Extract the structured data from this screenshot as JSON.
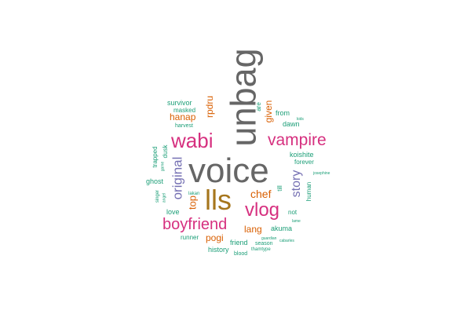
{
  "colors": {
    "gray": "#666666",
    "magenta": "#d6307f",
    "gold": "#a6761d",
    "purple": "#7570b3",
    "orange": "#d95f02",
    "teal": "#1b9e77",
    "green": "#66a61e"
  },
  "words": [
    {
      "text": "voice",
      "color": "gray"
    },
    {
      "text": "unbag",
      "color": "gray"
    },
    {
      "text": "lls",
      "color": "gold"
    },
    {
      "text": "wabi",
      "color": "magenta"
    },
    {
      "text": "vampire",
      "color": "magenta"
    },
    {
      "text": "vlog",
      "color": "magenta"
    },
    {
      "text": "boyfriend",
      "color": "magenta"
    },
    {
      "text": "original",
      "color": "purple"
    },
    {
      "text": "story",
      "color": "purple"
    },
    {
      "text": "chef",
      "color": "orange"
    },
    {
      "text": "top",
      "color": "orange"
    },
    {
      "text": "hanap",
      "color": "orange"
    },
    {
      "text": "rpdru",
      "color": "orange"
    },
    {
      "text": "given",
      "color": "orange"
    },
    {
      "text": "pogi",
      "color": "orange"
    },
    {
      "text": "lang",
      "color": "orange"
    },
    {
      "text": "survivor",
      "color": "teal"
    },
    {
      "text": "masked",
      "color": "teal"
    },
    {
      "text": "harvest",
      "color": "teal"
    },
    {
      "text": "are",
      "color": "teal"
    },
    {
      "text": "from",
      "color": "teal"
    },
    {
      "text": "dawn",
      "color": "teal"
    },
    {
      "text": "kids",
      "color": "teal"
    },
    {
      "text": "koishite",
      "color": "teal"
    },
    {
      "text": "forever",
      "color": "teal"
    },
    {
      "text": "till",
      "color": "teal"
    },
    {
      "text": "human",
      "color": "teal"
    },
    {
      "text": "josephine",
      "color": "teal"
    },
    {
      "text": "trapped",
      "color": "teal"
    },
    {
      "text": "dusk",
      "color": "teal"
    },
    {
      "text": "game",
      "color": "teal"
    },
    {
      "text": "ghost",
      "color": "teal"
    },
    {
      "text": "singer",
      "color": "teal"
    },
    {
      "text": "angel",
      "color": "teal"
    },
    {
      "text": "lakan",
      "color": "teal"
    },
    {
      "text": "love",
      "color": "teal"
    },
    {
      "text": "akuma",
      "color": "teal"
    },
    {
      "text": "not",
      "color": "teal"
    },
    {
      "text": "lame",
      "color": "teal"
    },
    {
      "text": "runner",
      "color": "teal"
    },
    {
      "text": "friend",
      "color": "teal"
    },
    {
      "text": "guardian",
      "color": "teal"
    },
    {
      "text": "season",
      "color": "teal"
    },
    {
      "text": "cabarles",
      "color": "teal"
    },
    {
      "text": "history",
      "color": "teal"
    },
    {
      "text": "thamtype",
      "color": "teal"
    },
    {
      "text": "blood",
      "color": "teal"
    }
  ]
}
